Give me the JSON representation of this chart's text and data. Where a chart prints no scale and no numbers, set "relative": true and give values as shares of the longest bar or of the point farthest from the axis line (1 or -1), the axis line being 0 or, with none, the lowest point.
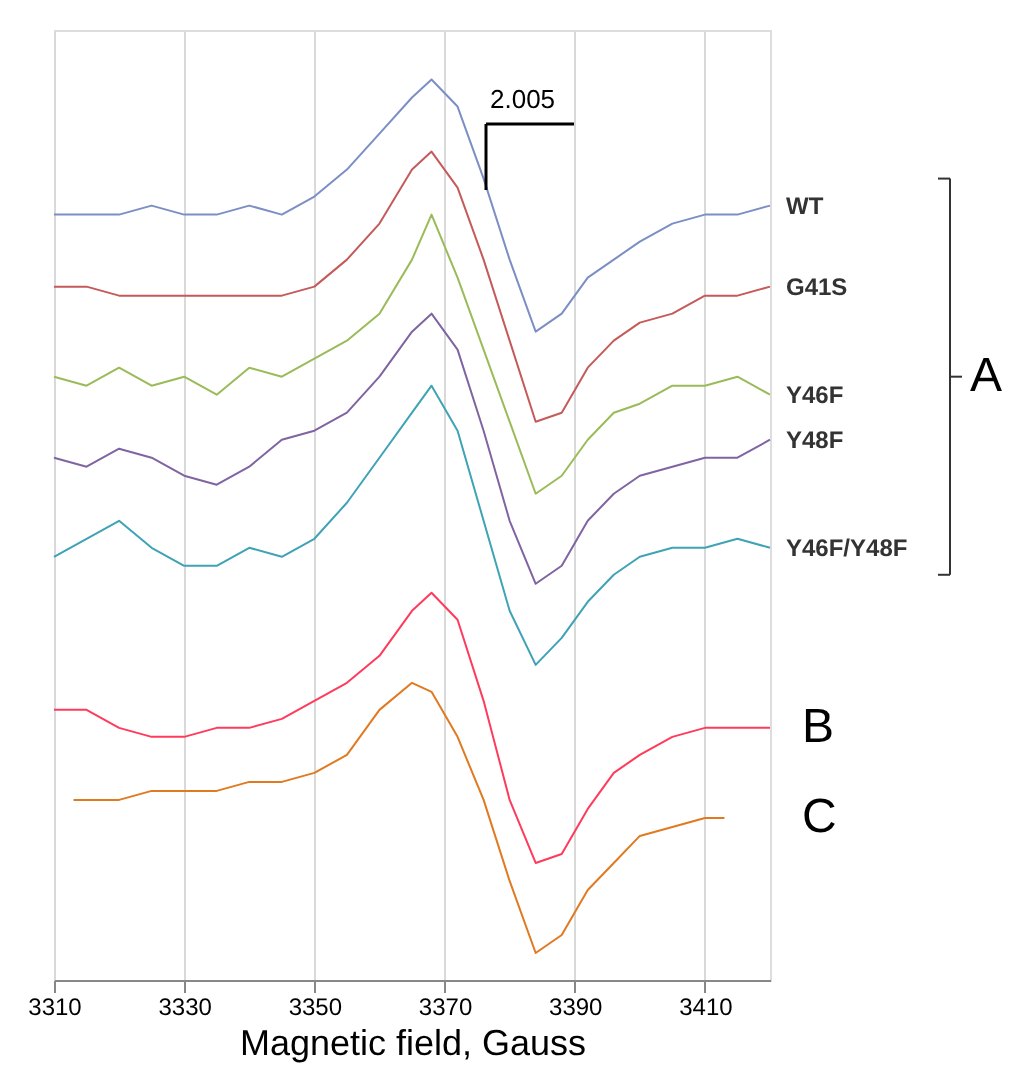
{
  "chart_data": {
    "type": "line",
    "relative": true,
    "xlabel": "Magnetic field, Gauss",
    "xlim": [
      3310,
      3420
    ],
    "xticks": [
      3310,
      3330,
      3350,
      3370,
      3390,
      3410
    ],
    "grid": "x",
    "legend": false,
    "x": [
      3310,
      3315,
      3320,
      3325,
      3330,
      3335,
      3340,
      3345,
      3350,
      3355,
      3360,
      3365,
      3368,
      3372,
      3376,
      3380,
      3384,
      3388,
      3392,
      3396,
      3400,
      3405,
      3410,
      3415,
      3420
    ],
    "annotations": [
      "A",
      "2.005"
    ],
    "series": [
      {
        "name": "WT",
        "color": "#7b8fc4",
        "values": [
          0.85,
          0.85,
          0.85,
          0.86,
          0.85,
          0.85,
          0.86,
          0.85,
          0.87,
          0.9,
          0.94,
          0.98,
          1.0,
          0.97,
          0.89,
          0.8,
          0.72,
          0.74,
          0.78,
          0.8,
          0.82,
          0.84,
          0.85,
          0.85,
          0.86
        ]
      },
      {
        "name": "G41S",
        "color": "#c55a5a",
        "values": [
          0.77,
          0.77,
          0.76,
          0.76,
          0.76,
          0.76,
          0.76,
          0.76,
          0.77,
          0.8,
          0.84,
          0.9,
          0.92,
          0.88,
          0.8,
          0.71,
          0.62,
          0.63,
          0.68,
          0.71,
          0.73,
          0.74,
          0.76,
          0.76,
          0.77
        ]
      },
      {
        "name": "Y46F",
        "color": "#9bbb59",
        "values": [
          0.67,
          0.66,
          0.68,
          0.66,
          0.67,
          0.65,
          0.68,
          0.67,
          0.69,
          0.71,
          0.74,
          0.8,
          0.85,
          0.78,
          0.7,
          0.62,
          0.54,
          0.56,
          0.6,
          0.63,
          0.64,
          0.66,
          0.66,
          0.67,
          0.65
        ]
      },
      {
        "name": "Y48F",
        "color": "#8064a2",
        "values": [
          0.58,
          0.57,
          0.59,
          0.58,
          0.56,
          0.55,
          0.57,
          0.6,
          0.61,
          0.63,
          0.67,
          0.72,
          0.74,
          0.7,
          0.61,
          0.51,
          0.44,
          0.46,
          0.51,
          0.54,
          0.56,
          0.57,
          0.58,
          0.58,
          0.6
        ]
      },
      {
        "name": "Y46F/Y48F",
        "color": "#3fa3b5",
        "values": [
          0.47,
          0.49,
          0.51,
          0.48,
          0.46,
          0.46,
          0.48,
          0.47,
          0.49,
          0.53,
          0.58,
          0.63,
          0.66,
          0.61,
          0.51,
          0.41,
          0.35,
          0.38,
          0.42,
          0.45,
          0.47,
          0.48,
          0.48,
          0.49,
          0.48
        ]
      },
      {
        "name": "B",
        "color": "#ff3b5c",
        "values": [
          0.3,
          0.3,
          0.28,
          0.27,
          0.27,
          0.28,
          0.28,
          0.29,
          0.31,
          0.33,
          0.36,
          0.41,
          0.43,
          0.4,
          0.31,
          0.2,
          0.13,
          0.14,
          0.19,
          0.23,
          0.25,
          0.27,
          0.28,
          0.28,
          0.28
        ]
      },
      {
        "name": "C",
        "color": "#e07a20",
        "x": [
          3313,
          3320,
          3325,
          3330,
          3335,
          3340,
          3345,
          3350,
          3355,
          3360,
          3365,
          3368,
          3372,
          3376,
          3380,
          3384,
          3388,
          3392,
          3396,
          3400,
          3405,
          3410,
          3413
        ],
        "values": [
          0.2,
          0.2,
          0.21,
          0.21,
          0.21,
          0.22,
          0.22,
          0.23,
          0.25,
          0.3,
          0.33,
          0.32,
          0.27,
          0.2,
          0.11,
          0.03,
          0.05,
          0.1,
          0.13,
          0.16,
          0.17,
          0.18,
          0.18
        ]
      }
    ]
  }
}
